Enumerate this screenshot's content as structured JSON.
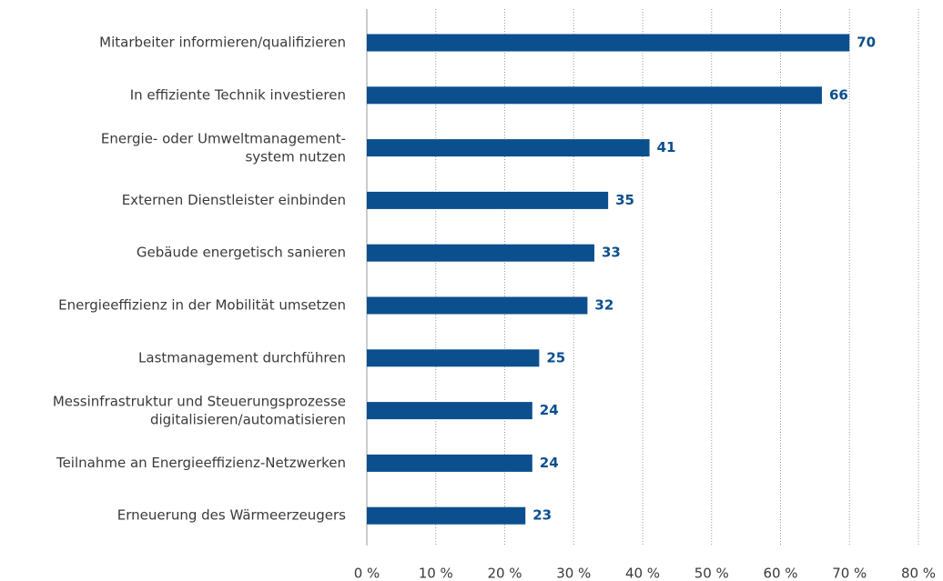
{
  "chart_data": {
    "type": "bar",
    "orientation": "horizontal",
    "categories": [
      "Mitarbeiter informieren/qualifizieren",
      "In effiziente Technik investieren",
      "Energie- oder Umweltmanagement-\nsystem nutzen",
      "Externen Dienstleister einbinden",
      "Gebäude energetisch sanieren",
      "Energieeffizienz in der Mobilität umsetzen",
      "Lastmanagement durchführen",
      "Messinfrastruktur und Steuerungsprozesse\ndigitalisieren/automatisieren",
      "Teilnahme an Energieeffizienz-Netzwerken",
      "Erneuerung des Wärmeerzeugers"
    ],
    "values": [
      70,
      66,
      41,
      35,
      33,
      32,
      25,
      24,
      24,
      23
    ],
    "color": "#0b4f8e",
    "xlim": [
      0,
      80
    ],
    "xticks": [
      {
        "value": 0,
        "label": "0 %"
      },
      {
        "value": 10,
        "label": "10 %"
      },
      {
        "value": 20,
        "label": "20 %"
      },
      {
        "value": 30,
        "label": "30 %"
      },
      {
        "value": 40,
        "label": "40 %"
      },
      {
        "value": 50,
        "label": "50 %"
      },
      {
        "value": 60,
        "label": "60 %"
      },
      {
        "value": 70,
        "label": "70 %"
      },
      {
        "value": 80,
        "label": "80 %"
      }
    ],
    "grid": true
  }
}
